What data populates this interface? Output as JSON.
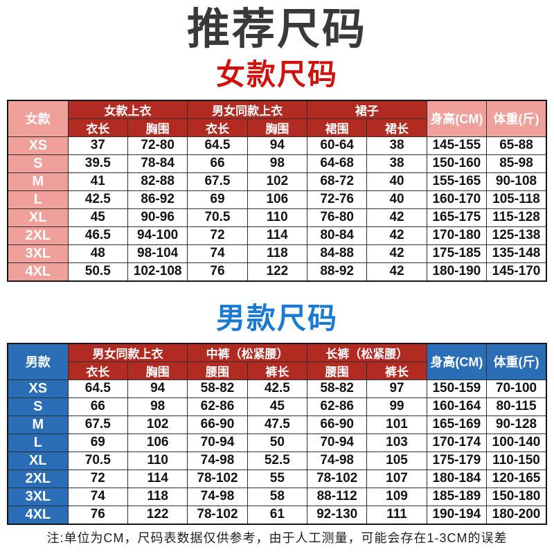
{
  "page_title": "推荐尺码",
  "footnote": "注:单位为CM，尺码表数据仅供参考，由于人工测量，可能会存在1-3CM的误差",
  "colors": {
    "title_dark": "#39393b",
    "women_accent": "#ce130e",
    "header_red": "#b12b22",
    "women_label_pink": "#f0a09a",
    "men_accent": "#1a7ad3",
    "men_label_blue": "#2b6db6",
    "value_text": "#121212",
    "table_border": "#2e2e2e"
  },
  "chart_data": [
    {
      "type": "table",
      "title": "女款尺码",
      "corner_label": "女款",
      "col_groups": [
        {
          "label": "女款上衣",
          "sub": [
            "衣长",
            "胸围"
          ]
        },
        {
          "label": "男女同款上衣",
          "sub": [
            "衣长",
            "胸围"
          ]
        },
        {
          "label": "裙子",
          "sub": [
            "裙围",
            "裙长"
          ]
        }
      ],
      "height_col": "身高(CM)",
      "weight_col": "体重(斤)",
      "rows": [
        {
          "size": "XS",
          "values": [
            "37",
            "72-80",
            "64.5",
            "94",
            "60-64",
            "38",
            "145-155",
            "65-88"
          ]
        },
        {
          "size": "S",
          "values": [
            "39.5",
            "78-84",
            "66",
            "98",
            "64-68",
            "38",
            "150-160",
            "85-98"
          ]
        },
        {
          "size": "M",
          "values": [
            "41",
            "82-88",
            "67.5",
            "102",
            "68-72",
            "40",
            "155-165",
            "90-108"
          ]
        },
        {
          "size": "L",
          "values": [
            "42.5",
            "86-92",
            "69",
            "106",
            "72-76",
            "40",
            "160-170",
            "105-118"
          ]
        },
        {
          "size": "XL",
          "values": [
            "45",
            "90-96",
            "70.5",
            "110",
            "76-80",
            "42",
            "165-175",
            "115-128"
          ]
        },
        {
          "size": "2XL",
          "values": [
            "46.5",
            "94-100",
            "72",
            "114",
            "80-84",
            "42",
            "170-180",
            "125-138"
          ]
        },
        {
          "size": "3XL",
          "values": [
            "48",
            "98-104",
            "74",
            "118",
            "84-88",
            "42",
            "175-185",
            "135-148"
          ]
        },
        {
          "size": "4XL",
          "values": [
            "50.5",
            "102-108",
            "76",
            "122",
            "88-92",
            "42",
            "180-190",
            "145-170"
          ]
        }
      ]
    },
    {
      "type": "table",
      "title": "男款尺码",
      "corner_label": "男款",
      "col_groups": [
        {
          "label": "男女同款上衣",
          "sub": [
            "衣长",
            "胸围"
          ]
        },
        {
          "label": "中裤（松紧腰）",
          "sub": [
            "腰围",
            "裤长"
          ]
        },
        {
          "label": "长裤（松紧腰）",
          "sub": [
            "腰围",
            "裤长"
          ]
        }
      ],
      "height_col": "身高(CM)",
      "weight_col": "体重(斤)",
      "rows": [
        {
          "size": "XS",
          "values": [
            "64.5",
            "94",
            "58-82",
            "42.5",
            "58-82",
            "97",
            "150-159",
            "70-100"
          ]
        },
        {
          "size": "S",
          "values": [
            "66",
            "98",
            "62-86",
            "45",
            "62-86",
            "99",
            "160-164",
            "80-115"
          ]
        },
        {
          "size": "M",
          "values": [
            "67.5",
            "102",
            "66-90",
            "47.5",
            "66-90",
            "101",
            "165-169",
            "90-128"
          ]
        },
        {
          "size": "L",
          "values": [
            "69",
            "106",
            "70-94",
            "50",
            "70-94",
            "103",
            "170-174",
            "100-140"
          ]
        },
        {
          "size": "XL",
          "values": [
            "70.5",
            "110",
            "74-98",
            "52.5",
            "74-98",
            "105",
            "175-179",
            "110-150"
          ]
        },
        {
          "size": "2XL",
          "values": [
            "72",
            "114",
            "78-102",
            "55",
            "78-102",
            "107",
            "180-184",
            "120-165"
          ]
        },
        {
          "size": "3XL",
          "values": [
            "74",
            "118",
            "74-98",
            "58",
            "88-112",
            "109",
            "185-189",
            "150-180"
          ]
        },
        {
          "size": "4XL",
          "values": [
            "76",
            "122",
            "78-102",
            "61",
            "92-130",
            "111",
            "190-194",
            "180-200"
          ]
        }
      ]
    }
  ]
}
